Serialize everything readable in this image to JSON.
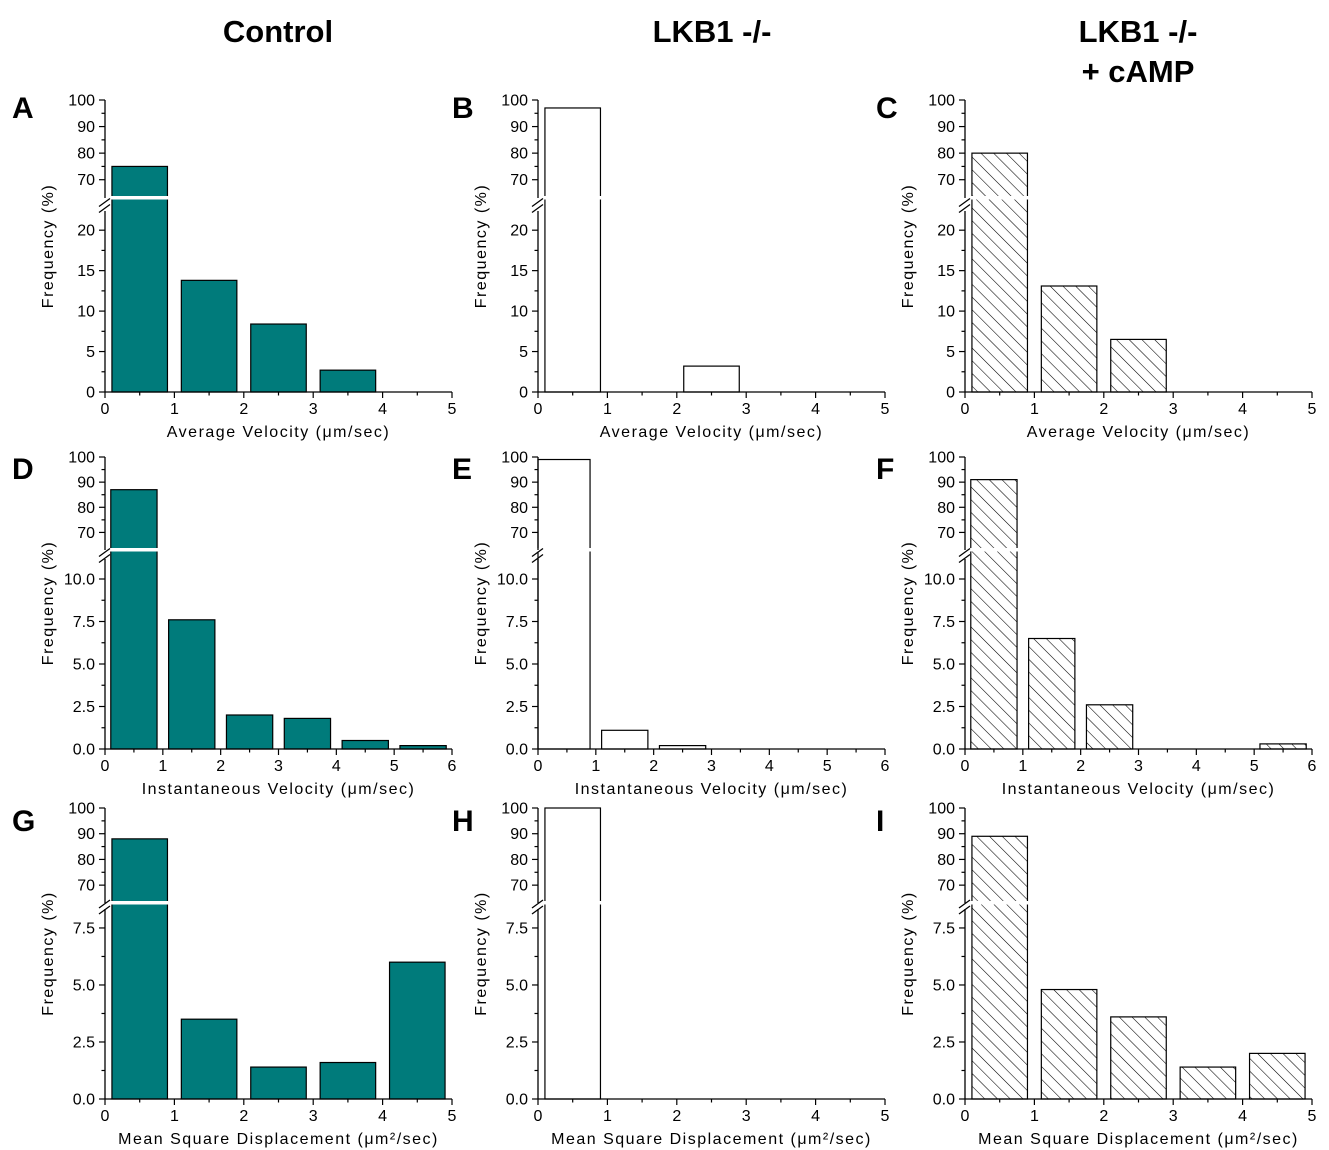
{
  "columns": [
    {
      "title_lines": [
        "Control"
      ],
      "style": "solid"
    },
    {
      "title_lines": [
        "LKB1 -/-"
      ],
      "style": "open"
    },
    {
      "title_lines": [
        "LKB1 -/-",
        "+ cAMP"
      ],
      "style": "hatched"
    }
  ],
  "colors": {
    "solid_fill": "#007b7b",
    "open_fill": "#ffffff",
    "hatch_stroke": "#000000",
    "bar_edge": "#000000"
  },
  "chart_data": [
    {
      "panel": "A",
      "type": "bar",
      "column": 0,
      "row": 0,
      "xlabel": "Average Velocity (μm/sec)",
      "ylabel": "Frequency (%)",
      "xlim": [
        0,
        5
      ],
      "xticks": [
        0,
        1,
        2,
        3,
        4,
        5
      ],
      "lower_ylim": [
        0,
        22
      ],
      "lower_yticks": [
        0,
        5,
        10,
        15,
        20
      ],
      "upper_ylim": [
        65,
        100
      ],
      "upper_yticks": [
        70,
        80,
        90,
        100
      ],
      "bins": [
        [
          0.1,
          0.9
        ],
        [
          1.1,
          1.9
        ],
        [
          2.1,
          2.9
        ],
        [
          3.1,
          3.9
        ]
      ],
      "values": [
        75,
        13.8,
        8.4,
        2.7
      ]
    },
    {
      "panel": "B",
      "type": "bar",
      "column": 1,
      "row": 0,
      "xlabel": "Average Velocity (μm/sec)",
      "ylabel": "Frequency (%)",
      "xlim": [
        0,
        5
      ],
      "xticks": [
        0,
        1,
        2,
        3,
        4,
        5
      ],
      "lower_ylim": [
        0,
        22
      ],
      "lower_yticks": [
        0,
        5,
        10,
        15,
        20
      ],
      "upper_ylim": [
        65,
        100
      ],
      "upper_yticks": [
        70,
        80,
        90,
        100
      ],
      "bins": [
        [
          0.1,
          0.9
        ],
        [
          2.1,
          2.9
        ]
      ],
      "values": [
        97,
        3.2
      ]
    },
    {
      "panel": "C",
      "type": "bar",
      "column": 2,
      "row": 0,
      "xlabel": "Average Velocity (μm/sec)",
      "ylabel": "Frequency (%)",
      "xlim": [
        0,
        5
      ],
      "xticks": [
        0,
        1,
        2,
        3,
        4,
        5
      ],
      "lower_ylim": [
        0,
        22
      ],
      "lower_yticks": [
        0,
        5,
        10,
        15,
        20
      ],
      "upper_ylim": [
        65,
        100
      ],
      "upper_yticks": [
        70,
        80,
        90,
        100
      ],
      "bins": [
        [
          0.1,
          0.9
        ],
        [
          1.1,
          1.9
        ],
        [
          2.1,
          2.9
        ]
      ],
      "values": [
        80,
        13.1,
        6.5
      ]
    },
    {
      "panel": "D",
      "type": "bar",
      "column": 0,
      "row": 1,
      "xlabel": "Instantaneous Velocity (μm/sec)",
      "ylabel": "Frequency (%)",
      "xlim": [
        0,
        6
      ],
      "xticks": [
        0,
        1,
        2,
        3,
        4,
        5,
        6
      ],
      "lower_ylim": [
        0,
        11
      ],
      "lower_yticks": [
        "0.0",
        "2.5",
        "5.0",
        "7.5",
        "10.0"
      ],
      "upper_ylim": [
        65,
        100
      ],
      "upper_yticks": [
        70,
        80,
        90,
        100
      ],
      "bins": [
        [
          0.1,
          0.9
        ],
        [
          1.1,
          1.9
        ],
        [
          2.1,
          2.9
        ],
        [
          3.1,
          3.9
        ],
        [
          4.1,
          4.9
        ],
        [
          5.1,
          5.9
        ]
      ],
      "values": [
        87,
        7.6,
        2.0,
        1.8,
        0.5,
        0.2
      ]
    },
    {
      "panel": "E",
      "type": "bar",
      "column": 1,
      "row": 1,
      "xlabel": "Instantaneous Velocity (μm/sec)",
      "ylabel": "Frequency (%)",
      "xlim": [
        0,
        6
      ],
      "xticks": [
        0,
        1,
        2,
        3,
        4,
        5,
        6
      ],
      "lower_ylim": [
        0,
        11
      ],
      "lower_yticks": [
        "0.0",
        "2.5",
        "5.0",
        "7.5",
        "10.0"
      ],
      "upper_ylim": [
        65,
        100
      ],
      "upper_yticks": [
        70,
        80,
        90,
        100
      ],
      "bins": [
        [
          0.0,
          0.9
        ],
        [
          1.1,
          1.9
        ],
        [
          2.1,
          2.9
        ]
      ],
      "values": [
        99,
        1.1,
        0.2
      ]
    },
    {
      "panel": "F",
      "type": "bar",
      "column": 2,
      "row": 1,
      "xlabel": "Instantaneous Velocity (μm/sec)",
      "ylabel": "Frequency (%)",
      "xlim": [
        0,
        6
      ],
      "xticks": [
        0,
        1,
        2,
        3,
        4,
        5,
        6
      ],
      "lower_ylim": [
        0,
        11
      ],
      "lower_yticks": [
        "0.0",
        "2.5",
        "5.0",
        "7.5",
        "10.0"
      ],
      "upper_ylim": [
        65,
        100
      ],
      "upper_yticks": [
        70,
        80,
        90,
        100
      ],
      "bins": [
        [
          0.1,
          0.9
        ],
        [
          1.1,
          1.9
        ],
        [
          2.1,
          2.9
        ],
        [
          5.1,
          5.9
        ]
      ],
      "values": [
        91,
        6.5,
        2.6,
        0.3
      ]
    },
    {
      "panel": "G",
      "type": "bar",
      "column": 0,
      "row": 2,
      "xlabel": "Mean Square Displacement (μm²/sec)",
      "ylabel": "Frequency (%)",
      "xlim": [
        0,
        5
      ],
      "xticks": [
        0,
        1,
        2,
        3,
        4,
        5
      ],
      "lower_ylim": [
        0,
        8.2
      ],
      "lower_yticks": [
        "0.0",
        "2.5",
        "5.0",
        "7.5"
      ],
      "upper_ylim": [
        65,
        100
      ],
      "upper_yticks": [
        70,
        80,
        90,
        100
      ],
      "bins": [
        [
          0.1,
          0.9
        ],
        [
          1.1,
          1.9
        ],
        [
          2.1,
          2.9
        ],
        [
          3.1,
          3.9
        ],
        [
          4.1,
          4.9
        ]
      ],
      "values": [
        88,
        3.5,
        1.4,
        1.6,
        6.0
      ]
    },
    {
      "panel": "H",
      "type": "bar",
      "column": 1,
      "row": 2,
      "xlabel": "Mean Square Displacement (μm²/sec)",
      "ylabel": "Frequency (%)",
      "xlim": [
        0,
        5
      ],
      "xticks": [
        0,
        1,
        2,
        3,
        4,
        5
      ],
      "lower_ylim": [
        0,
        8.2
      ],
      "lower_yticks": [
        "0.0",
        "2.5",
        "5.0",
        "7.5"
      ],
      "upper_ylim": [
        65,
        100
      ],
      "upper_yticks": [
        70,
        80,
        90,
        100
      ],
      "bins": [
        [
          0.1,
          0.9
        ]
      ],
      "values": [
        100
      ]
    },
    {
      "panel": "I",
      "type": "bar",
      "column": 2,
      "row": 2,
      "xlabel": "Mean Square Displacement (μm²/sec)",
      "ylabel": "Frequency (%)",
      "xlim": [
        0,
        5
      ],
      "xticks": [
        0,
        1,
        2,
        3,
        4,
        5
      ],
      "lower_ylim": [
        0,
        8.2
      ],
      "lower_yticks": [
        "0.0",
        "2.5",
        "5.0",
        "7.5"
      ],
      "upper_ylim": [
        65,
        100
      ],
      "upper_yticks": [
        70,
        80,
        90,
        100
      ],
      "bins": [
        [
          0.1,
          0.9
        ],
        [
          1.1,
          1.9
        ],
        [
          2.1,
          2.9
        ],
        [
          3.1,
          3.9
        ],
        [
          4.1,
          4.9
        ]
      ],
      "values": [
        89,
        4.8,
        3.6,
        1.4,
        2.0
      ]
    }
  ]
}
